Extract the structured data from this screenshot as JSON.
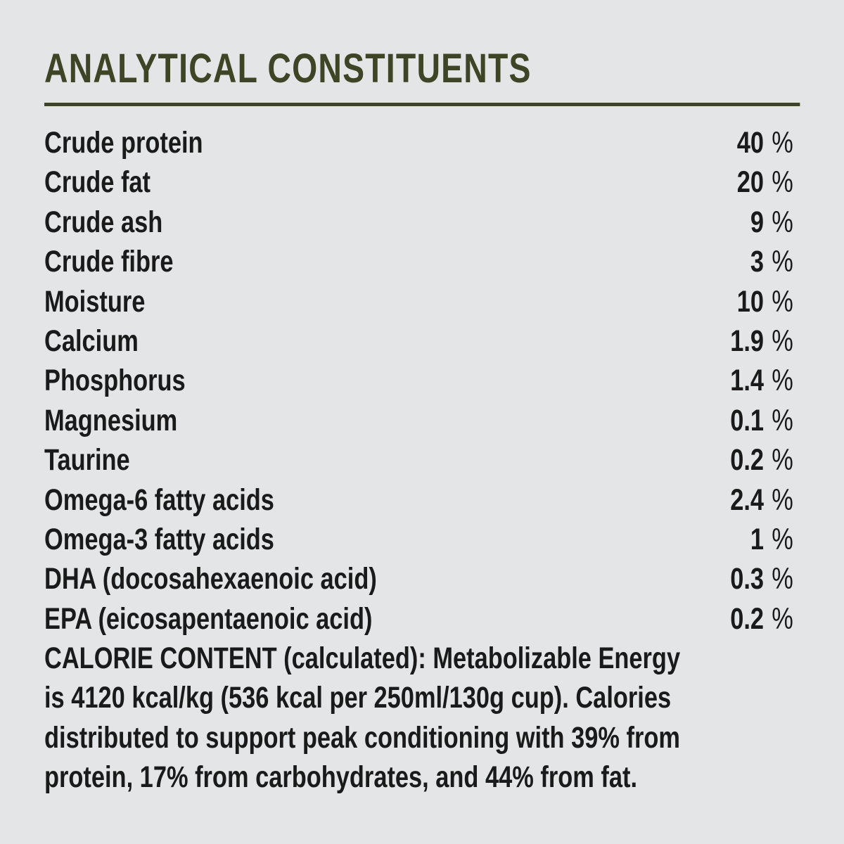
{
  "colors": {
    "background": "#e3e5e6",
    "accent_olive": "#3d4526",
    "text": "#1a1a1a"
  },
  "panel": {
    "title": "ANALYTICAL CONSTITUENTS",
    "rows": [
      {
        "label": "Crude protein",
        "value": "40",
        "unit": "%"
      },
      {
        "label": "Crude fat",
        "value": "20",
        "unit": "%"
      },
      {
        "label": "Crude ash",
        "value": "9",
        "unit": "%"
      },
      {
        "label": "Crude fibre",
        "value": "3",
        "unit": "%"
      },
      {
        "label": "Moisture",
        "value": "10",
        "unit": "%"
      },
      {
        "label": "Calcium",
        "value": "1.9",
        "unit": "%"
      },
      {
        "label": "Phosphorus",
        "value": "1.4",
        "unit": "%"
      },
      {
        "label": "Magnesium",
        "value": "0.1",
        "unit": "%"
      },
      {
        "label": "Taurine",
        "value": "0.2",
        "unit": "%"
      },
      {
        "label": "Omega-6 fatty acids",
        "value": "2.4",
        "unit": "%"
      },
      {
        "label": "Omega-3 fatty acids",
        "value": "1",
        "unit": "%"
      },
      {
        "label": "DHA (docosahexaenoic acid)",
        "value": "0.3",
        "unit": "%"
      },
      {
        "label": "EPA (eicosapentaenoic acid)",
        "value": "0.2",
        "unit": "%"
      }
    ],
    "calorie_content": {
      "lines": [
        "CALORIE CONTENT (calculated): Metabolizable Energy",
        "is 4120 kcal/kg (536 kcal per 250ml/130g cup). Calories",
        "distributed to support peak conditioning with 39% from",
        "protein, 17% from carbohydrates, and 44% from fat."
      ]
    }
  }
}
